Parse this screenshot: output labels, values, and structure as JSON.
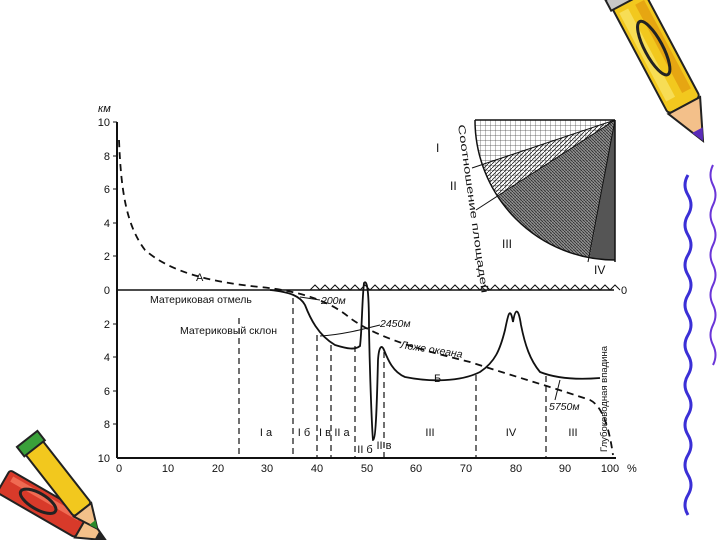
{
  "diagram": {
    "y_unit": "км",
    "y_ticks": [
      "10",
      "8",
      "6",
      "4",
      "2",
      "0",
      "2",
      "4",
      "6",
      "8",
      "10"
    ],
    "x_ticks": [
      "0",
      "10",
      "20",
      "30",
      "40",
      "50",
      "60",
      "70",
      "80",
      "90",
      "100"
    ],
    "x_unit": "%",
    "sea_level_right": "0",
    "curve_a_label": "А",
    "curve_b_label": "Б",
    "labels": {
      "continental_mark": "Материковая отмель",
      "continental_slope": "Материковый склон",
      "ocean_floor": "Ложе океана",
      "trench": "Глубоководная впадина",
      "depth_200": "200м",
      "depth_2450": "2450м",
      "depth_5750": "5750м"
    },
    "zones": [
      "I а",
      "I б",
      "I в",
      "II а",
      "II б",
      "II в",
      "III",
      "IV",
      "III"
    ],
    "inset": {
      "arc_label": "Соотношение площадей",
      "numerals": [
        "I",
        "II",
        "III",
        "IV"
      ]
    }
  },
  "decorations": [
    "pencil-icon",
    "pencils-icon",
    "squiggle-border"
  ],
  "colors": {
    "ink": "#111111",
    "pencil_yellow": "#f2c81e",
    "pencil_red": "#d83a2a",
    "border_blue": "#3b2fd6"
  }
}
